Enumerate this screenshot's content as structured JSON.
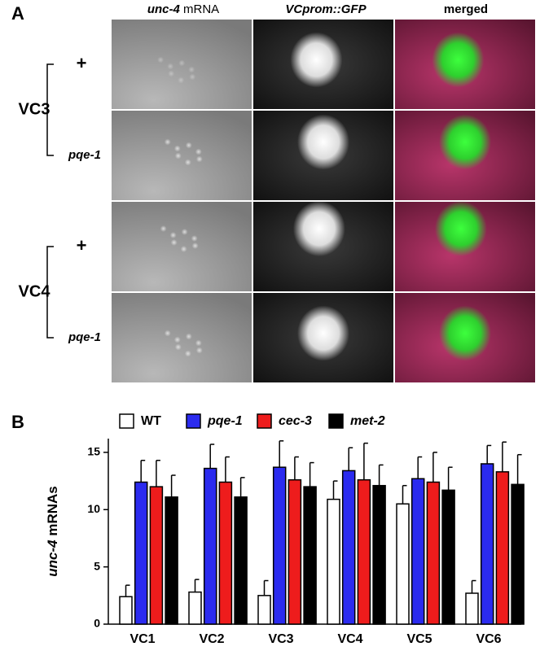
{
  "panel_a": {
    "label": "A",
    "col1_gene": "unc-4",
    "col1_rest": "mRNA",
    "col2": "VCprom::GFP",
    "col3": "merged",
    "groups": [
      {
        "name": "VC3",
        "rows": [
          "+",
          "pqe-1"
        ]
      },
      {
        "name": "VC4",
        "rows": [
          "+",
          "pqe-1"
        ]
      }
    ]
  },
  "chart_data": {
    "type": "bar",
    "panel_label": "B",
    "ylabel_gene": "unc-4",
    "ylabel_rest": "mRNAs",
    "categories": [
      "VC1",
      "VC2",
      "VC3",
      "VC4",
      "VC5",
      "VC6"
    ],
    "series": [
      {
        "name": "WT",
        "color": "#ffffff",
        "values": [
          2.4,
          2.8,
          2.5,
          10.9,
          10.5,
          2.7
        ],
        "errors": [
          1.0,
          1.1,
          1.3,
          1.6,
          1.6,
          1.1
        ]
      },
      {
        "name": "pqe-1",
        "color": "#2b2bef",
        "values": [
          12.4,
          13.6,
          13.7,
          13.4,
          12.7,
          14.0
        ],
        "errors": [
          1.9,
          2.1,
          2.3,
          2.0,
          1.9,
          1.6
        ]
      },
      {
        "name": "cec-3",
        "color": "#ee1c1c",
        "values": [
          12.0,
          12.4,
          12.6,
          12.6,
          12.4,
          13.3
        ],
        "errors": [
          2.3,
          2.2,
          2.0,
          3.2,
          2.6,
          2.6
        ]
      },
      {
        "name": "met-2",
        "color": "#000000",
        "values": [
          11.1,
          11.1,
          12.0,
          12.1,
          11.7,
          12.2
        ],
        "errors": [
          1.9,
          1.7,
          2.1,
          1.8,
          2.0,
          2.6
        ]
      }
    ],
    "ylim": [
      0,
      16.2
    ],
    "yticks": [
      0,
      5,
      10,
      15
    ]
  }
}
